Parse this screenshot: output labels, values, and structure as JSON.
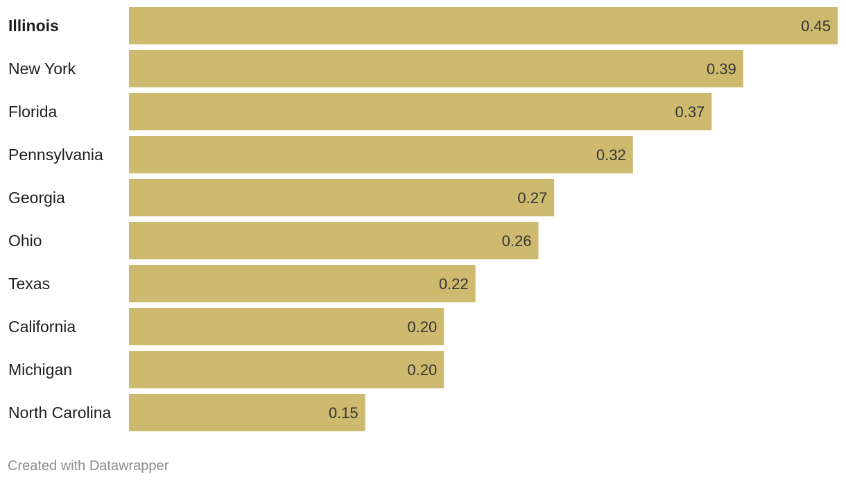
{
  "chart_data": {
    "type": "bar",
    "orientation": "horizontal",
    "categories": [
      "Illinois",
      "New York",
      "Florida",
      "Pennsylvania",
      "Georgia",
      "Ohio",
      "Texas",
      "California",
      "Michigan",
      "North Carolina"
    ],
    "values": [
      0.45,
      0.39,
      0.37,
      0.32,
      0.27,
      0.26,
      0.22,
      0.2,
      0.2,
      0.15
    ],
    "value_labels": [
      "0.45",
      "0.39",
      "0.37",
      "0.32",
      "0.27",
      "0.26",
      "0.22",
      "0.20",
      "0.20",
      "0.15"
    ],
    "highlighted_category": "Illinois",
    "xlim": [
      0,
      0.45
    ],
    "grid": false,
    "bar_color": "#cdba6e"
  },
  "footer": {
    "credit": "Created with Datawrapper"
  }
}
